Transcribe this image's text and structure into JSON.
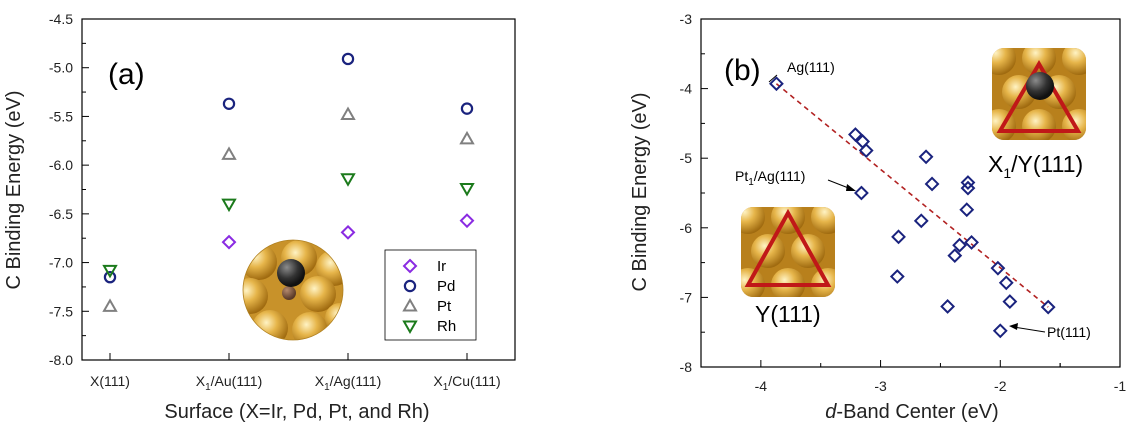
{
  "chart_data": [
    {
      "type": "scatter",
      "panel_label": "(a)",
      "xlabel": "Surface (X=Ir, Pd, Pt, and Rh)",
      "ylabel": "C Binding Energy (eV)",
      "ylim": [
        -8.0,
        -4.5
      ],
      "yticks": [
        "-8.0",
        "-7.5",
        "-7.0",
        "-6.5",
        "-6.0",
        "-5.5",
        "-5.0",
        "-4.5"
      ],
      "categories": [
        "X(111)",
        "X1/Au(111)",
        "X1/Ag(111)",
        "X1/Cu(111)"
      ],
      "series": [
        {
          "name": "Ir",
          "color": "#8a2be2",
          "marker": "diamond",
          "values": [
            null,
            -6.79,
            -6.69,
            -6.57
          ]
        },
        {
          "name": "Pd",
          "color": "#1a237e",
          "marker": "circle",
          "values": [
            -7.15,
            -5.37,
            -4.91,
            -5.42
          ]
        },
        {
          "name": "Pt",
          "color": "#808080",
          "marker": "triangle-up",
          "values": [
            -7.45,
            -5.89,
            -5.48,
            -5.73
          ]
        },
        {
          "name": "Rh",
          "color": "#1b7a1b",
          "marker": "triangle-down",
          "values": [
            -7.08,
            -6.4,
            -6.14,
            -6.24
          ]
        }
      ],
      "legend_position": "bottom-right"
    },
    {
      "type": "scatter",
      "panel_label": "(b)",
      "xlabel_italic": "d",
      "xlabel_rest": "-Band Center (eV)",
      "ylabel": "C Binding Energy (eV)",
      "xlim": [
        -4.5,
        -1.0
      ],
      "ylim": [
        -8,
        -3
      ],
      "xticks": [
        "-4",
        "-3",
        "-2",
        "-1"
      ],
      "yticks": [
        "-8",
        "-7",
        "-6",
        "-5",
        "-4",
        "-3"
      ],
      "color": "#1a237e",
      "x": [
        -3.87,
        -3.21,
        -3.15,
        -3.12,
        -3.16,
        -2.85,
        -2.86,
        -2.66,
        -2.62,
        -2.57,
        -2.44,
        -2.38,
        -2.34,
        -2.28,
        -2.27,
        -2.27,
        -2.24,
        -2.02,
        -2.0,
        -1.95,
        -1.92,
        -1.6
      ],
      "y": [
        -3.93,
        -4.66,
        -4.76,
        -4.89,
        -5.5,
        -6.13,
        -6.7,
        -5.9,
        -4.98,
        -5.37,
        -7.13,
        -6.4,
        -6.25,
        -5.74,
        -5.35,
        -5.43,
        -6.21,
        -6.58,
        -7.48,
        -6.79,
        -7.06,
        -7.14
      ],
      "fit_line": {
        "x": [
          -3.87,
          -1.6
        ],
        "y": [
          -3.93,
          -7.14
        ],
        "color": "#b22222",
        "style": "dashed"
      },
      "annotations": [
        {
          "text": "Ag(111)"
        },
        {
          "text": "Pt",
          "sub": "1",
          "rest": "/Ag(111)"
        },
        {
          "text": "Pt(111)"
        }
      ],
      "inset_labels": [
        {
          "text": "X",
          "sub": "1",
          "rest": "/Y(111)"
        },
        {
          "text": "Y(111)"
        }
      ]
    }
  ]
}
